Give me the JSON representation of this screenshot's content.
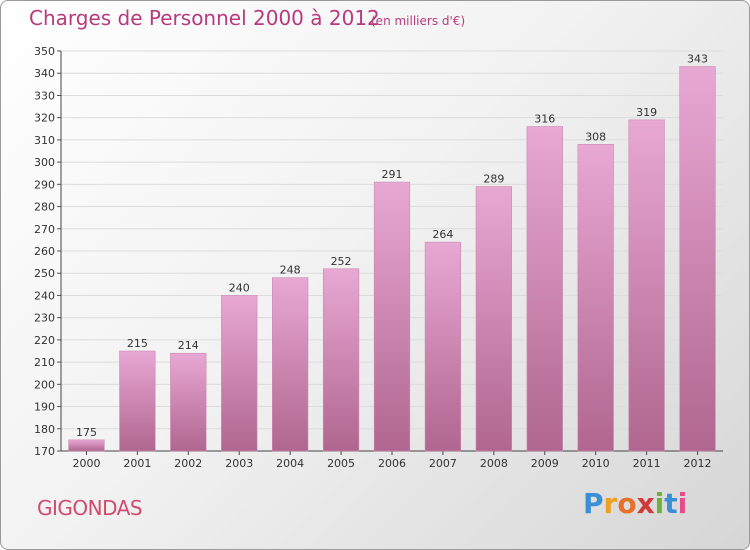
{
  "header": {
    "title": "Charges de Personnel 2000 à 2012",
    "subtitle": "(en milliers d'€)"
  },
  "footer": {
    "commune": "GIGONDAS",
    "logo": "Proxiti"
  },
  "colors": {
    "title": "#b83a7e",
    "bar_top": "#e8a8d4",
    "bar_bottom": "#b0668f",
    "commune": "#d04b6c"
  },
  "chart_data": {
    "type": "bar",
    "title": "Charges de Personnel 2000 à 2012",
    "subtitle": "(en milliers d'€)",
    "categories": [
      "2000",
      "2001",
      "2002",
      "2003",
      "2004",
      "2005",
      "2006",
      "2007",
      "2008",
      "2009",
      "2010",
      "2011",
      "2012"
    ],
    "values": [
      175,
      215,
      214,
      240,
      248,
      252,
      291,
      264,
      289,
      316,
      308,
      319,
      343
    ],
    "ylim": [
      170,
      350
    ],
    "ytick_step": 10,
    "grid": true,
    "data_labels": true
  }
}
